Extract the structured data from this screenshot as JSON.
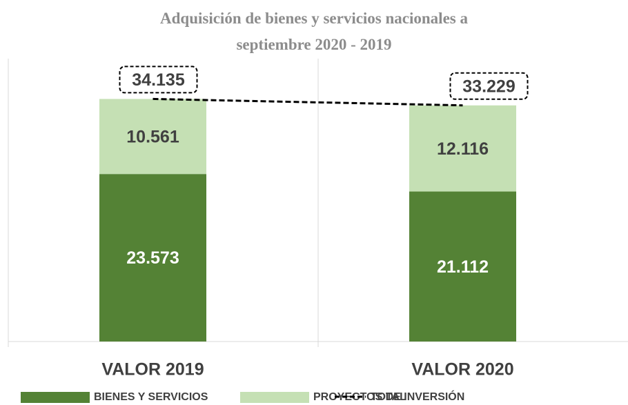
{
  "chart_data": {
    "type": "stacked_bar",
    "title": "Adquisición de bienes y servicios nacionales a septiembre 2020 - 2019",
    "categories": [
      "VALOR 2019",
      "VALOR 2020"
    ],
    "ylim": [
      0,
      40000
    ],
    "series": [
      {
        "name": "BIENES Y SERVICIOS",
        "color": "#548235",
        "values": [
          23573,
          21112
        ],
        "value_labels": [
          "23.573",
          "21.112"
        ]
      },
      {
        "name": "PROYECTOS DE INVERSIÓN",
        "color": "#c5e0b4",
        "values": [
          10561,
          12116
        ],
        "value_labels": [
          "10.561",
          "12.116"
        ]
      },
      {
        "name": "TOTAL",
        "color": "#000000",
        "kind": "line",
        "values": [
          34135,
          33229
        ],
        "value_labels": [
          "34.135",
          "33.229"
        ]
      }
    ]
  }
}
